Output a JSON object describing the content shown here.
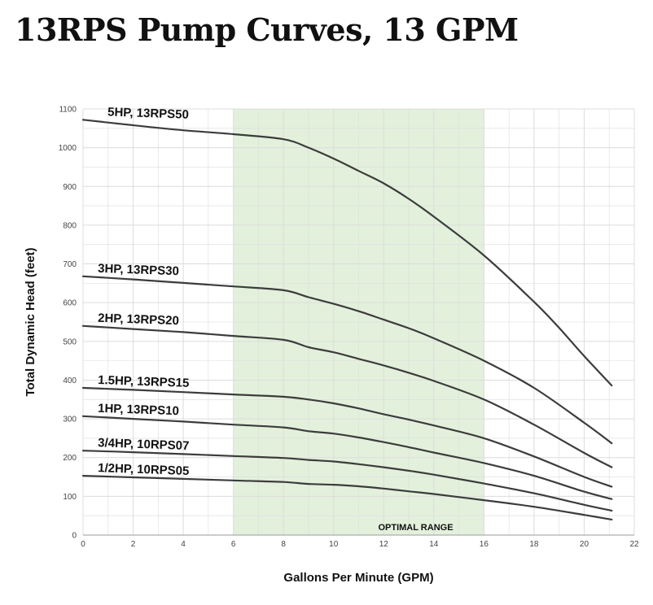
{
  "title": "13RPS Pump Curves, 13 GPM",
  "colors": {
    "curve": "#3c3c3c",
    "optimal_band": "#e3f1dc",
    "grid": "#dcdcdc"
  },
  "chart_data": {
    "type": "line",
    "xlabel": "Gallons Per Minute (GPM)",
    "ylabel": "Total Dynamic Head (feet)",
    "xlim": [
      0,
      22
    ],
    "ylim": [
      0,
      1100
    ],
    "xticks": [
      0,
      2,
      4,
      6,
      8,
      10,
      12,
      14,
      16,
      18,
      20,
      22
    ],
    "yticks": [
      0,
      100,
      200,
      300,
      400,
      500,
      600,
      700,
      800,
      900,
      1000,
      1100
    ],
    "grid": true,
    "optimal_range": {
      "x": [
        6,
        16
      ],
      "label": "OPTIMAL RANGE"
    },
    "series": [
      {
        "name": "5HP, 13RPS50",
        "points": [
          [
            0,
            1072
          ],
          [
            2,
            1058
          ],
          [
            4,
            1045
          ],
          [
            6,
            1035
          ],
          [
            8,
            1022
          ],
          [
            9,
            1000
          ],
          [
            10,
            972
          ],
          [
            11,
            940
          ],
          [
            12,
            908
          ],
          [
            13,
            868
          ],
          [
            14,
            822
          ],
          [
            16,
            722
          ],
          [
            18,
            602
          ],
          [
            19,
            535
          ],
          [
            20,
            462
          ],
          [
            21.1,
            386
          ]
        ]
      },
      {
        "name": "3HP, 13RPS30",
        "points": [
          [
            0,
            668
          ],
          [
            2,
            660
          ],
          [
            4,
            651
          ],
          [
            6,
            642
          ],
          [
            8,
            632
          ],
          [
            9,
            614
          ],
          [
            10,
            597
          ],
          [
            11,
            578
          ],
          [
            12,
            556
          ],
          [
            13,
            534
          ],
          [
            14,
            508
          ],
          [
            16,
            450
          ],
          [
            18,
            380
          ],
          [
            20,
            290
          ],
          [
            21.1,
            237
          ]
        ]
      },
      {
        "name": "2HP, 13RPS20",
        "points": [
          [
            0,
            540
          ],
          [
            2,
            532
          ],
          [
            4,
            524
          ],
          [
            6,
            514
          ],
          [
            8,
            504
          ],
          [
            9,
            485
          ],
          [
            10,
            472
          ],
          [
            11,
            455
          ],
          [
            12,
            438
          ],
          [
            13,
            419
          ],
          [
            14,
            398
          ],
          [
            16,
            350
          ],
          [
            18,
            285
          ],
          [
            20,
            212
          ],
          [
            21.1,
            175
          ]
        ]
      },
      {
        "name": "1.5HP, 13RPS15",
        "points": [
          [
            0,
            380
          ],
          [
            2,
            375
          ],
          [
            4,
            369
          ],
          [
            6,
            363
          ],
          [
            8,
            357
          ],
          [
            9,
            350
          ],
          [
            10,
            340
          ],
          [
            11,
            327
          ],
          [
            12,
            312
          ],
          [
            13,
            298
          ],
          [
            14,
            283
          ],
          [
            16,
            250
          ],
          [
            18,
            203
          ],
          [
            20,
            150
          ],
          [
            21.1,
            125
          ]
        ]
      },
      {
        "name": "1HP, 13RPS10",
        "points": [
          [
            0,
            307
          ],
          [
            2,
            300
          ],
          [
            4,
            293
          ],
          [
            6,
            285
          ],
          [
            8,
            278
          ],
          [
            9,
            268
          ],
          [
            10,
            262
          ],
          [
            11,
            252
          ],
          [
            12,
            240
          ],
          [
            13,
            227
          ],
          [
            14,
            213
          ],
          [
            16,
            186
          ],
          [
            18,
            153
          ],
          [
            20,
            112
          ],
          [
            21.1,
            93
          ]
        ]
      },
      {
        "name": "3/4HP, 10RPS07",
        "points": [
          [
            0,
            218
          ],
          [
            2,
            214
          ],
          [
            4,
            209
          ],
          [
            6,
            204
          ],
          [
            8,
            199
          ],
          [
            9,
            194
          ],
          [
            10,
            190
          ],
          [
            11,
            183
          ],
          [
            12,
            175
          ],
          [
            13,
            166
          ],
          [
            14,
            156
          ],
          [
            16,
            133
          ],
          [
            18,
            108
          ],
          [
            20,
            78
          ],
          [
            21.1,
            63
          ]
        ]
      },
      {
        "name": "1/2HP, 10RPS05",
        "points": [
          [
            0,
            153
          ],
          [
            2,
            149
          ],
          [
            4,
            145
          ],
          [
            6,
            141
          ],
          [
            8,
            137
          ],
          [
            9,
            132
          ],
          [
            10,
            130
          ],
          [
            11,
            126
          ],
          [
            12,
            120
          ],
          [
            13,
            113
          ],
          [
            14,
            106
          ],
          [
            16,
            90
          ],
          [
            18,
            73
          ],
          [
            20,
            52
          ],
          [
            21.1,
            40
          ]
        ]
      }
    ]
  }
}
